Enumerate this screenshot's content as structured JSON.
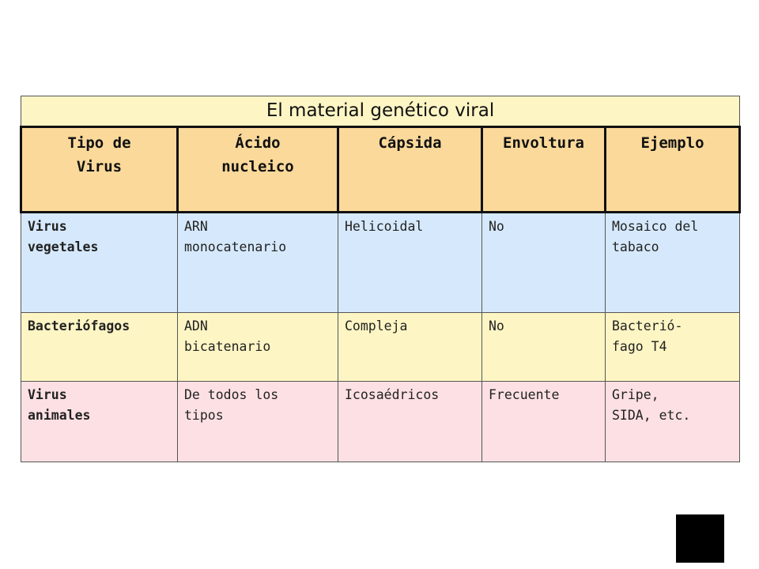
{
  "table": {
    "title": "El material genético viral",
    "headers": [
      "Tipo de\nVirus",
      "Ácido\nnucleico",
      "Cápsida",
      "Envoltura",
      "Ejemplo"
    ],
    "rows": [
      [
        "Virus\nvegetales",
        "ARN\nmonocatenario",
        "Helicoidal",
        "No",
        "Mosaico del\ntabaco"
      ],
      [
        "Bacteriófagos",
        "ADN\nbicatenario",
        "Compleja",
        "No",
        "Bacterió-\nfago T4"
      ],
      [
        "Virus\nanimales",
        "De todos los\ntipos",
        "Icosaédricos",
        "Frecuente",
        "Gripe,\nSIDA, etc."
      ]
    ]
  },
  "colors": {
    "title_bg": "#fdf5c4",
    "header_bg": "#fad99a",
    "row_vegetales": "#d6e9fc",
    "row_bacteriofagos": "#fdf5c4",
    "row_animales": "#fde0e3"
  }
}
